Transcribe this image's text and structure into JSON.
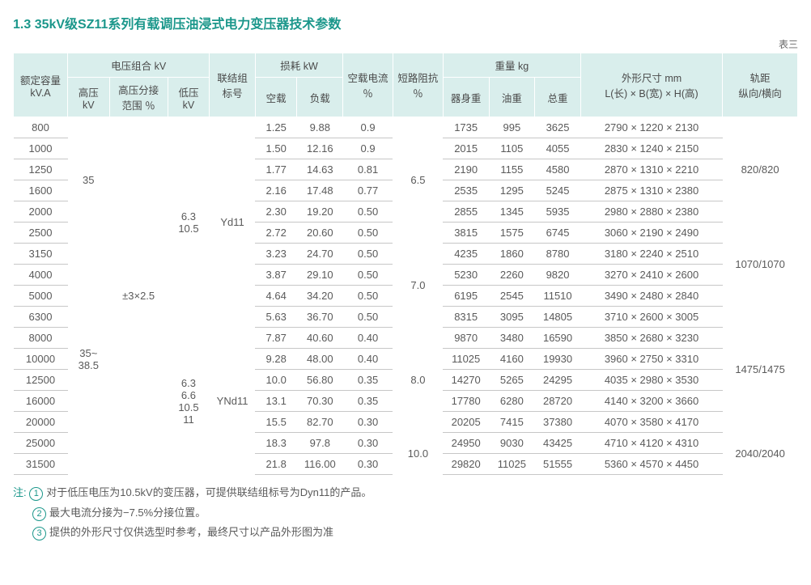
{
  "title": "1.3  35kV级SZ11系列有载调压油浸式电力变压器技术参数",
  "table_index": "表三",
  "colors": {
    "accent": "#1b978b",
    "header_bg": "#d9eeec",
    "row_border": "#c7c7c7",
    "text": "#5a5a5a"
  },
  "headers": {
    "capacity": "额定容量\nkV.A",
    "voltage_group": "电压组合 kV",
    "hv": "高压\nkV",
    "tap": "高压分接\n范围 ％",
    "lv": "低压\nkV",
    "conn": "联结组\n标号",
    "loss_group": "损耗 kW",
    "noload": "空载",
    "load": "负载",
    "nl_current": "空载电流\n％",
    "impedance": "短路阻抗\n％",
    "weight_group": "重量 kg",
    "body": "器身重",
    "oil": "油重",
    "total": "总重",
    "dim": "外形尺寸 mm\nL(长) × B(宽) × H(高)",
    "track": "轨距\n纵向/横向"
  },
  "merged": {
    "hv": [
      "35",
      "35~\n38.5"
    ],
    "tap": "±3×2.5",
    "lv": [
      "6.3\n10.5",
      "6.3\n6.6\n10.5\n11"
    ],
    "conn": [
      "Yd11",
      "YNd11"
    ],
    "imp": [
      "6.5",
      "7.0",
      "8.0",
      "10.0"
    ],
    "track": [
      "820/820",
      "1070/1070",
      "1475/1475",
      "2040/2040"
    ]
  },
  "rows": [
    {
      "cap": "800",
      "nl": "1.25",
      "ll": "9.88",
      "nli": "0.9",
      "bw": "1735",
      "ow": "995",
      "tw": "3625",
      "dim": "2790 × 1220 × 2130"
    },
    {
      "cap": "1000",
      "nl": "1.50",
      "ll": "12.16",
      "nli": "0.9",
      "bw": "2015",
      "ow": "1105",
      "tw": "4055",
      "dim": "2830 × 1240 × 2150"
    },
    {
      "cap": "1250",
      "nl": "1.77",
      "ll": "14.63",
      "nli": "0.81",
      "bw": "2190",
      "ow": "1155",
      "tw": "4580",
      "dim": "2870 × 1310 × 2210"
    },
    {
      "cap": "1600",
      "nl": "2.16",
      "ll": "17.48",
      "nli": "0.77",
      "bw": "2535",
      "ow": "1295",
      "tw": "5245",
      "dim": "2875 × 1310 × 2380"
    },
    {
      "cap": "2000",
      "nl": "2.30",
      "ll": "19.20",
      "nli": "0.50",
      "bw": "2855",
      "ow": "1345",
      "tw": "5935",
      "dim": "2980 × 2880 × 2380"
    },
    {
      "cap": "2500",
      "nl": "2.72",
      "ll": "20.60",
      "nli": "0.50",
      "bw": "3815",
      "ow": "1575",
      "tw": "6745",
      "dim": "3060 × 2190 × 2490"
    },
    {
      "cap": "3150",
      "nl": "3.23",
      "ll": "24.70",
      "nli": "0.50",
      "bw": "4235",
      "ow": "1860",
      "tw": "8780",
      "dim": "3180 × 2240 × 2510"
    },
    {
      "cap": "4000",
      "nl": "3.87",
      "ll": "29.10",
      "nli": "0.50",
      "bw": "5230",
      "ow": "2260",
      "tw": "9820",
      "dim": "3270 × 2410 × 2600"
    },
    {
      "cap": "5000",
      "nl": "4.64",
      "ll": "34.20",
      "nli": "0.50",
      "bw": "6195",
      "ow": "2545",
      "tw": "11510",
      "dim": "3490 × 2480 × 2840"
    },
    {
      "cap": "6300",
      "nl": "5.63",
      "ll": "36.70",
      "nli": "0.50",
      "bw": "8315",
      "ow": "3095",
      "tw": "14805",
      "dim": "3710 × 2600 × 3005"
    },
    {
      "cap": "8000",
      "nl": "7.87",
      "ll": "40.60",
      "nli": "0.40",
      "bw": "9870",
      "ow": "3480",
      "tw": "16590",
      "dim": "3850 × 2680 × 3230"
    },
    {
      "cap": "10000",
      "nl": "9.28",
      "ll": "48.00",
      "nli": "0.40",
      "bw": "11025",
      "ow": "4160",
      "tw": "19930",
      "dim": "3960 × 2750 × 3310"
    },
    {
      "cap": "12500",
      "nl": "10.0",
      "ll": "56.80",
      "nli": "0.35",
      "bw": "14270",
      "ow": "5265",
      "tw": "24295",
      "dim": "4035 × 2980 × 3530"
    },
    {
      "cap": "16000",
      "nl": "13.1",
      "ll": "70.30",
      "nli": "0.35",
      "bw": "17780",
      "ow": "6280",
      "tw": "28720",
      "dim": "4140 × 3200 × 3660"
    },
    {
      "cap": "20000",
      "nl": "15.5",
      "ll": "82.70",
      "nli": "0.30",
      "bw": "20205",
      "ow": "7415",
      "tw": "37380",
      "dim": "4070 × 3580 × 4170"
    },
    {
      "cap": "25000",
      "nl": "18.3",
      "ll": "97.8",
      "nli": "0.30",
      "bw": "24950",
      "ow": "9030",
      "tw": "43425",
      "dim": "4710 × 4120 × 4310"
    },
    {
      "cap": "31500",
      "nl": "21.8",
      "ll": "116.00",
      "nli": "0.30",
      "bw": "29820",
      "ow": "11025",
      "tw": "51555",
      "dim": "5360 × 4570 × 4450"
    }
  ],
  "notes": {
    "label": "注:",
    "items": [
      "对于低压电压为10.5kV的变压器，可提供联结组标号为Dyn11的产品。",
      "最大电流分接为−7.5%分接位置。",
      "提供的外形尺寸仅供选型时参考，最终尺寸以产品外形图为准"
    ]
  }
}
